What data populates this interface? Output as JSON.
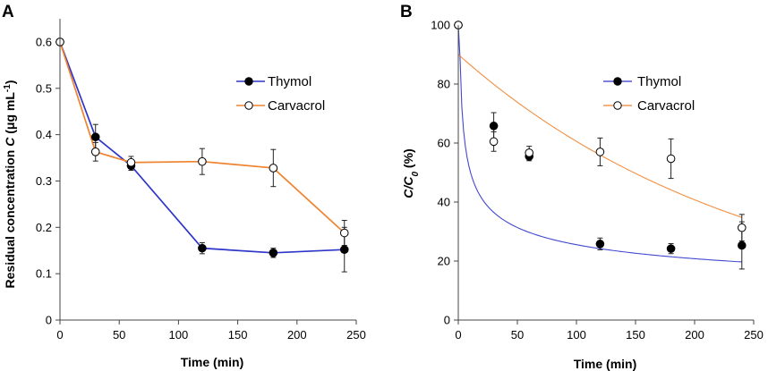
{
  "chart_data": [
    {
      "panel": "A",
      "type": "line",
      "xlabel": "Time (min)",
      "ylabel_main": "Residual concentration ",
      "ylabel_var": "C",
      "ylabel_unit": " (μg mL",
      "ylabel_sup": "-1",
      "ylabel_close": ")",
      "xlim": [
        0,
        250
      ],
      "ylim": [
        0,
        0.65
      ],
      "xticks": [
        0,
        50,
        100,
        150,
        200,
        250
      ],
      "xtick_labels": [
        "0",
        "50",
        "100",
        "150",
        "200",
        "250"
      ],
      "yticks": [
        0,
        0.1,
        0.2,
        0.3,
        0.4,
        0.5,
        0.6
      ],
      "ytick_labels": [
        "0",
        "0.1",
        "0.2",
        "0.3",
        "0.4",
        "0.5",
        "0.6"
      ],
      "legend_position": "top-right",
      "series": [
        {
          "name": "Thymol",
          "color": "#2e35c9",
          "marker": "filled",
          "x": [
            0,
            30,
            60,
            120,
            180,
            240
          ],
          "y": [
            0.6,
            0.395,
            0.333,
            0.155,
            0.145,
            0.152
          ],
          "err": [
            0,
            0.027,
            0.01,
            0.012,
            0.01,
            0.048
          ]
        },
        {
          "name": "Carvacrol",
          "color": "#f0832e",
          "marker": "open",
          "x": [
            0,
            30,
            60,
            120,
            180,
            240
          ],
          "y": [
            0.6,
            0.363,
            0.34,
            0.342,
            0.328,
            0.188
          ],
          "err": [
            0,
            0.02,
            0.013,
            0.028,
            0.04,
            0.027
          ]
        }
      ]
    },
    {
      "panel": "B",
      "type": "scatter",
      "xlabel": "Time (min)",
      "ylabel_var": "C",
      "ylabel_slash": "/",
      "ylabel_sub": "0",
      "ylabel_unit": " (%)",
      "xlim": [
        0,
        250
      ],
      "ylim": [
        0,
        100
      ],
      "xticks": [
        0,
        50,
        100,
        150,
        200,
        250
      ],
      "xtick_labels": [
        "0",
        "50",
        "100",
        "150",
        "200",
        "250"
      ],
      "yticks": [
        0,
        20,
        40,
        60,
        80,
        100
      ],
      "ytick_labels": [
        "0",
        "20",
        "40",
        "60",
        "80",
        "100"
      ],
      "legend_position": "top-right",
      "series": [
        {
          "name": "Thymol",
          "color": "#2e35c9",
          "marker": "filled",
          "x": [
            0,
            30,
            60,
            120,
            180,
            240
          ],
          "y": [
            100,
            65.8,
            55.5,
            25.8,
            24.2,
            25.3
          ],
          "err": [
            0,
            4.5,
            1.5,
            2,
            1.7,
            8
          ],
          "fit": {
            "model": "power",
            "a": 100,
            "b": -0.2964,
            "x_range": [
              0,
              240
            ]
          }
        },
        {
          "name": "Carvacrol",
          "color": "#f0832e",
          "marker": "open",
          "x": [
            0,
            30,
            60,
            120,
            180,
            240
          ],
          "y": [
            100,
            60.5,
            56.7,
            57,
            54.7,
            31.3
          ],
          "err": [
            0,
            3.3,
            2.2,
            4.7,
            6.7,
            4.5
          ],
          "fit": {
            "model": "exponential",
            "a": 90,
            "k": 0.00396,
            "x_range": [
              0,
              240
            ]
          }
        }
      ]
    }
  ],
  "panels": [
    {
      "letter": "A"
    },
    {
      "letter": "B"
    }
  ]
}
